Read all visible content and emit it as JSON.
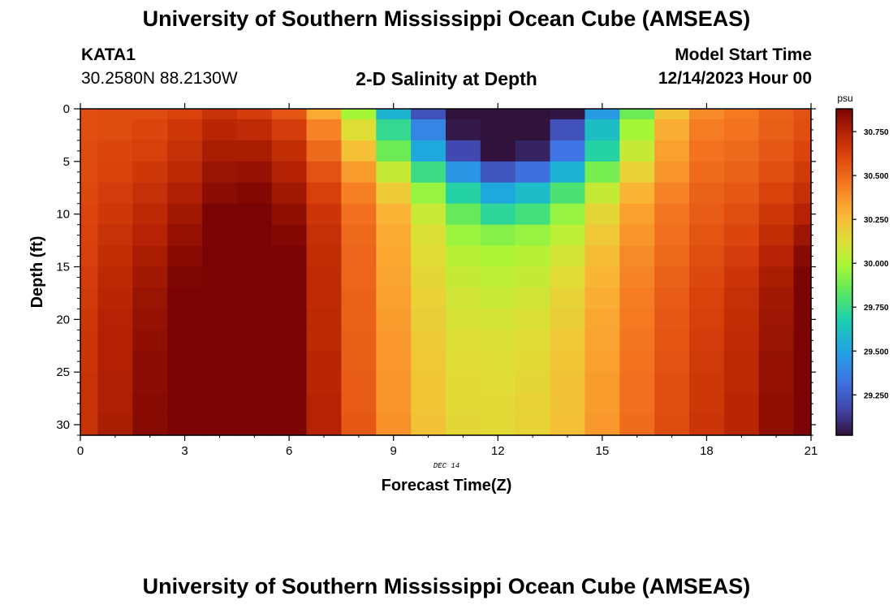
{
  "header": {
    "title": "University of Southern Mississippi Ocean Cube (AMSEAS)",
    "station": "KATA1",
    "coords": "30.2580N  88.2130W",
    "subtitle": "2-D Salinity at Depth",
    "model_start_label": "Model Start Time",
    "model_start_value": "12/14/2023 Hour 00"
  },
  "footer": {
    "title": "University of Southern Mississippi Ocean Cube (AMSEAS)"
  },
  "chart_data": {
    "type": "heatmap",
    "title": "2-D Salinity at Depth",
    "xlabel": "Forecast Time(Z)",
    "ylabel": "Depth (ft)",
    "date_label": "DEC 14",
    "x_ticks": [
      0,
      3,
      6,
      9,
      12,
      15,
      18,
      21
    ],
    "y_ticks": [
      0,
      5,
      10,
      15,
      20,
      25,
      30
    ],
    "xlim": [
      0,
      21
    ],
    "ylim": [
      0,
      31
    ],
    "x_centers": [
      0,
      1,
      2,
      3,
      4,
      5,
      6,
      7,
      8,
      9,
      10,
      11,
      12,
      13,
      14,
      15,
      16,
      17,
      18,
      19,
      20,
      21
    ],
    "depth_centers": [
      0,
      2,
      4,
      6,
      8,
      10,
      12,
      14,
      16,
      18,
      20,
      22,
      24,
      26,
      28,
      30
    ],
    "values": [
      [
        30.58,
        30.59,
        30.59,
        30.62,
        30.68,
        30.64,
        30.56,
        30.31,
        29.98,
        29.57,
        29.21,
        28.83,
        28.55,
        28.72,
        29.03,
        29.47,
        29.87,
        30.23,
        30.4,
        30.45,
        30.52,
        30.57
      ],
      [
        30.58,
        30.59,
        30.61,
        30.66,
        30.73,
        30.71,
        30.64,
        30.42,
        30.13,
        29.74,
        29.39,
        29.04,
        28.8,
        28.94,
        29.21,
        29.61,
        29.98,
        30.3,
        30.44,
        30.47,
        30.53,
        30.58
      ],
      [
        30.59,
        30.61,
        30.63,
        30.69,
        30.77,
        30.77,
        30.7,
        30.5,
        30.24,
        29.87,
        29.52,
        29.18,
        28.95,
        29.07,
        29.33,
        29.7,
        30.06,
        30.34,
        30.47,
        30.5,
        30.55,
        30.61
      ],
      [
        30.59,
        30.62,
        30.66,
        30.72,
        30.81,
        30.82,
        30.75,
        30.57,
        30.35,
        30.06,
        29.76,
        29.45,
        29.22,
        29.32,
        29.56,
        29.89,
        30.17,
        30.37,
        30.49,
        30.52,
        30.58,
        30.65
      ],
      [
        30.6,
        30.64,
        30.69,
        30.76,
        30.84,
        30.86,
        30.79,
        30.63,
        30.43,
        30.2,
        29.95,
        29.7,
        29.52,
        29.6,
        29.8,
        30.06,
        30.28,
        30.42,
        30.52,
        30.55,
        30.62,
        30.69
      ],
      [
        30.61,
        30.66,
        30.72,
        30.79,
        30.88,
        30.9,
        30.83,
        30.67,
        30.48,
        30.28,
        30.07,
        29.86,
        29.72,
        29.78,
        29.95,
        30.16,
        30.34,
        30.46,
        30.54,
        30.58,
        30.66,
        30.74
      ],
      [
        30.62,
        30.68,
        30.74,
        30.82,
        30.91,
        30.93,
        30.86,
        30.69,
        30.5,
        30.31,
        30.12,
        29.96,
        29.92,
        29.95,
        30.04,
        30.21,
        30.37,
        30.48,
        30.56,
        30.61,
        30.7,
        30.8
      ],
      [
        30.63,
        30.7,
        30.77,
        30.85,
        30.93,
        30.96,
        30.88,
        30.7,
        30.51,
        30.32,
        30.14,
        30.02,
        30.0,
        30.02,
        30.1,
        30.25,
        30.4,
        30.5,
        30.58,
        30.64,
        30.74,
        30.85
      ],
      [
        30.64,
        30.72,
        30.79,
        30.87,
        30.95,
        30.97,
        30.89,
        30.71,
        30.51,
        30.33,
        30.16,
        30.06,
        30.04,
        30.06,
        30.14,
        30.28,
        30.42,
        30.52,
        30.6,
        30.67,
        30.77,
        30.89
      ],
      [
        30.65,
        30.73,
        30.81,
        30.89,
        30.96,
        30.98,
        30.9,
        30.71,
        30.52,
        30.34,
        30.18,
        30.09,
        30.07,
        30.09,
        30.17,
        30.3,
        30.44,
        30.54,
        30.62,
        30.69,
        30.79,
        30.92
      ],
      [
        30.66,
        30.74,
        30.82,
        30.9,
        30.97,
        30.99,
        30.91,
        30.72,
        30.52,
        30.35,
        30.19,
        30.11,
        30.1,
        30.12,
        30.19,
        30.32,
        30.45,
        30.55,
        30.63,
        30.7,
        30.8,
        30.93
      ],
      [
        30.67,
        30.75,
        30.83,
        30.91,
        30.98,
        31.0,
        30.91,
        30.72,
        30.53,
        30.36,
        30.2,
        30.13,
        30.12,
        30.14,
        30.21,
        30.33,
        30.46,
        30.56,
        30.64,
        30.71,
        30.81,
        30.94
      ],
      [
        30.67,
        30.75,
        30.84,
        30.92,
        30.99,
        31.0,
        30.92,
        30.73,
        30.53,
        30.36,
        30.21,
        30.14,
        30.13,
        30.15,
        30.22,
        30.34,
        30.47,
        30.57,
        30.65,
        30.72,
        30.82,
        30.95
      ],
      [
        30.68,
        30.76,
        30.84,
        30.92,
        30.99,
        31.01,
        30.92,
        30.73,
        30.54,
        30.37,
        30.22,
        30.15,
        30.14,
        30.16,
        30.23,
        30.35,
        30.48,
        30.58,
        30.66,
        30.72,
        30.82,
        30.95
      ],
      [
        30.68,
        30.76,
        30.85,
        30.93,
        31.0,
        31.01,
        30.93,
        30.74,
        30.54,
        30.37,
        30.22,
        30.15,
        30.15,
        30.17,
        30.23,
        30.35,
        30.48,
        30.58,
        30.66,
        30.73,
        30.83,
        30.96
      ],
      [
        30.68,
        30.77,
        30.85,
        30.93,
        31.0,
        31.02,
        30.93,
        30.74,
        30.55,
        30.38,
        30.23,
        30.16,
        30.15,
        30.17,
        30.24,
        30.36,
        30.49,
        30.59,
        30.67,
        30.73,
        30.83,
        30.96
      ]
    ],
    "colorbar": {
      "unit": "psu",
      "min": 29.02,
      "max": 30.88,
      "ticks": [
        "30.750",
        "30.500",
        "30.250",
        "30.000",
        "29.750",
        "29.500",
        "29.250"
      ]
    }
  }
}
